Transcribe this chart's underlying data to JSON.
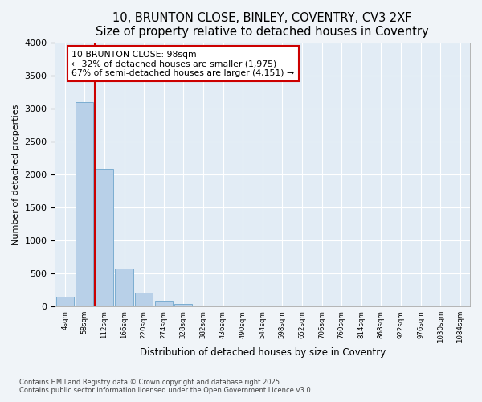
{
  "title1": "10, BRUNTON CLOSE, BINLEY, COVENTRY, CV3 2XF",
  "title2": "Size of property relative to detached houses in Coventry",
  "xlabel": "Distribution of detached houses by size in Coventry",
  "ylabel": "Number of detached properties",
  "footnote": "Contains HM Land Registry data © Crown copyright and database right 2025.\nContains public sector information licensed under the Open Government Licence v3.0.",
  "bar_categories": [
    "4sqm",
    "58sqm",
    "112sqm",
    "166sqm",
    "220sqm",
    "274sqm",
    "328sqm",
    "382sqm",
    "436sqm",
    "490sqm",
    "544sqm",
    "598sqm",
    "652sqm",
    "706sqm",
    "760sqm",
    "814sqm",
    "868sqm",
    "922sqm",
    "976sqm",
    "1030sqm",
    "1084sqm"
  ],
  "bar_values": [
    150,
    3100,
    2080,
    580,
    210,
    70,
    45,
    0,
    0,
    0,
    0,
    0,
    0,
    0,
    0,
    0,
    0,
    0,
    0,
    0,
    0
  ],
  "bar_color": "#b8d0e8",
  "bar_edge_color": "#7badd1",
  "annotation_text": "10 BRUNTON CLOSE: 98sqm\n← 32% of detached houses are smaller (1,975)\n67% of semi-detached houses are larger (4,151) →",
  "annotation_box_color": "#ffffff",
  "annotation_box_edge": "#cc0000",
  "vline_x": 1.5,
  "vline_color": "#cc0000",
  "ylim": [
    0,
    4000
  ],
  "yticks": [
    0,
    500,
    1000,
    1500,
    2000,
    2500,
    3000,
    3500,
    4000
  ],
  "fig_bg_color": "#f0f4f8",
  "plot_bg": "#e2ecf5",
  "grid_color": "#ffffff",
  "title1_fontsize": 10.5,
  "title2_fontsize": 9.5,
  "annot_fontsize": 7.8
}
